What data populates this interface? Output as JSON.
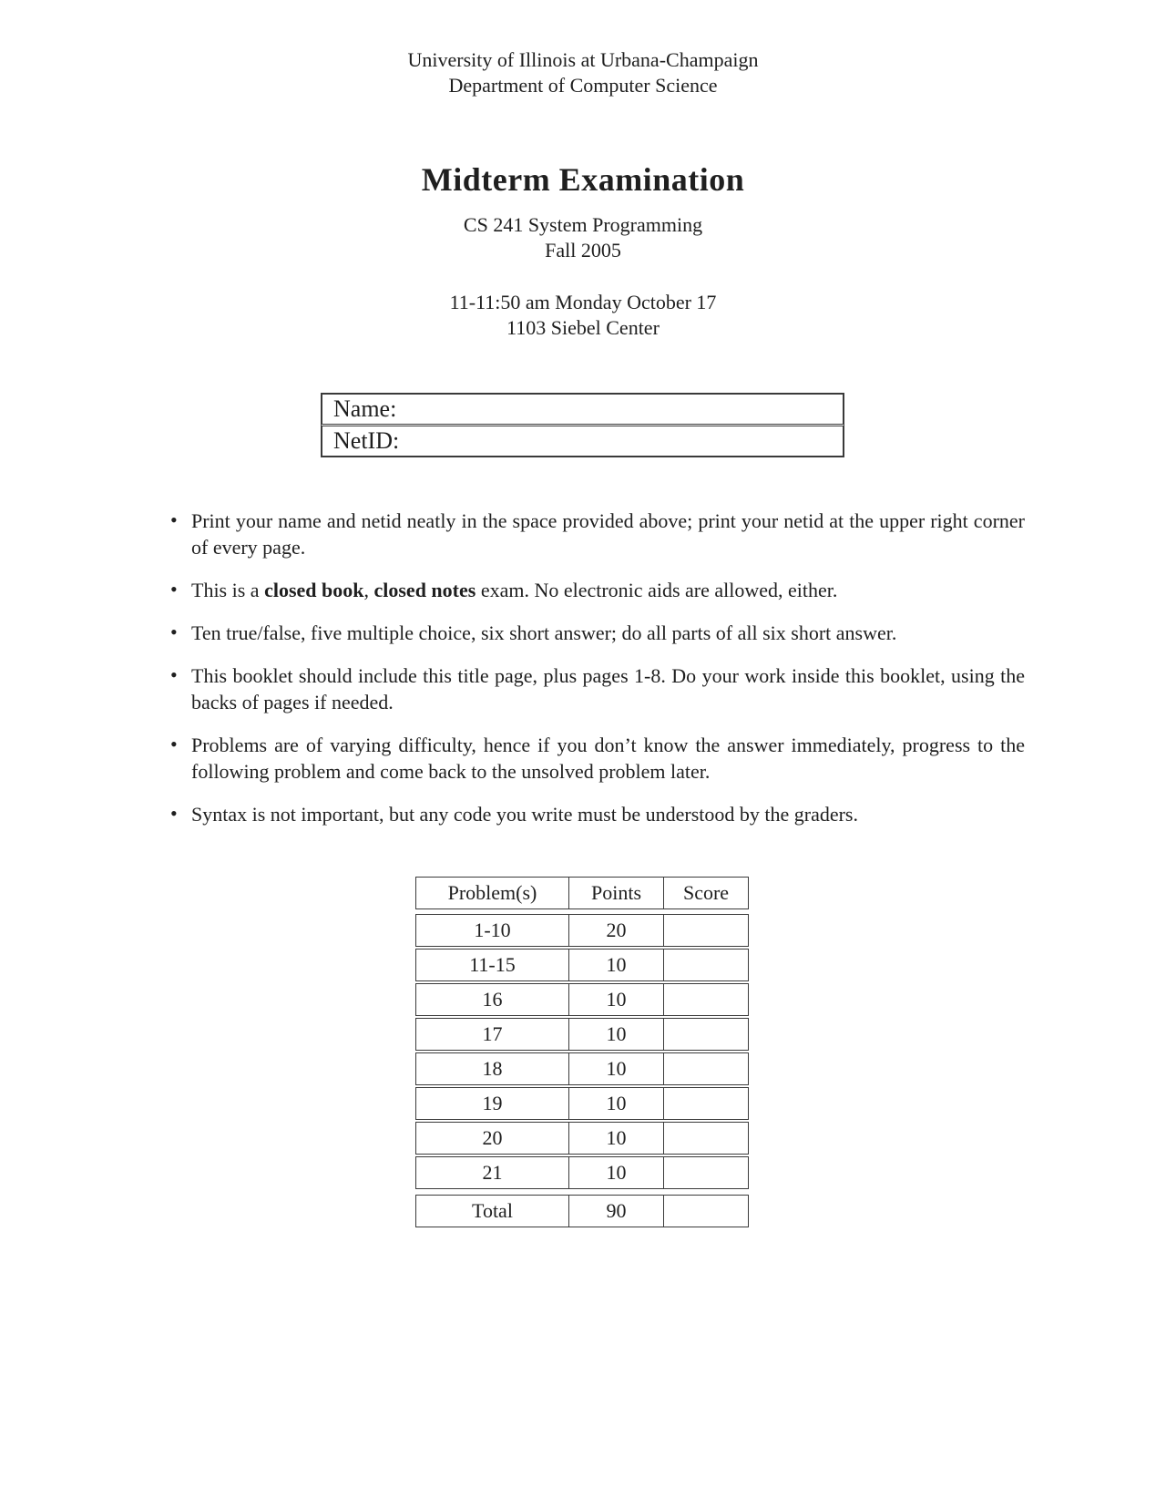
{
  "document": {
    "header": {
      "line1": "University of Illinois at Urbana-Champaign",
      "line2": "Department of Computer Science"
    },
    "title": "Midterm Examination",
    "course": {
      "line1": "CS 241 System Programming",
      "line2": "Fall 2005"
    },
    "session": {
      "line1": "11-11:50 am Monday October 17",
      "line2": "1103 Siebel Center"
    }
  },
  "id_box": {
    "rows": [
      {
        "label": "Name:",
        "value": ""
      },
      {
        "label": "NetID:",
        "value": ""
      }
    ]
  },
  "instructions": {
    "bullet_char": "•",
    "items": [
      {
        "segments": [
          {
            "text": "Print your name and netid neatly in the space provided above; print your netid at the upper right corner of every page.",
            "bold": false
          }
        ]
      },
      {
        "segments": [
          {
            "text": "This is a ",
            "bold": false
          },
          {
            "text": "closed book",
            "bold": true
          },
          {
            "text": ", ",
            "bold": false
          },
          {
            "text": "closed notes",
            "bold": true
          },
          {
            "text": " exam. No electronic aids are allowed, either.",
            "bold": false
          }
        ]
      },
      {
        "segments": [
          {
            "text": "Ten true/false, five multiple choice, six short answer; do all parts of all six short answer.",
            "bold": false
          }
        ]
      },
      {
        "segments": [
          {
            "text": "This booklet should include this title page, plus pages 1-8. Do your work inside this booklet, using the backs of pages if needed.",
            "bold": false
          }
        ]
      },
      {
        "segments": [
          {
            "text": "Problems are of varying difficulty, hence if you don’t know the answer immediately, progress to the following problem and come back to the unsolved problem later.",
            "bold": false
          }
        ]
      },
      {
        "segments": [
          {
            "text": "Syntax is not important, but any code you write must be understood by the graders.",
            "bold": false
          }
        ]
      }
    ]
  },
  "score_table": {
    "columns": [
      "Problem(s)",
      "Points",
      "Score"
    ],
    "rows": [
      {
        "problems": "1-10",
        "points": "20",
        "score": ""
      },
      {
        "problems": "11-15",
        "points": "10",
        "score": ""
      },
      {
        "problems": "16",
        "points": "10",
        "score": ""
      },
      {
        "problems": "17",
        "points": "10",
        "score": ""
      },
      {
        "problems": "18",
        "points": "10",
        "score": ""
      },
      {
        "problems": "19",
        "points": "10",
        "score": ""
      },
      {
        "problems": "20",
        "points": "10",
        "score": ""
      },
      {
        "problems": "21",
        "points": "10",
        "score": ""
      }
    ],
    "total_row": {
      "problems": "Total",
      "points": "90",
      "score": ""
    }
  },
  "colors": {
    "background": "#ffffff",
    "text": "#1f1f1f",
    "border": "#3a3a3a"
  }
}
